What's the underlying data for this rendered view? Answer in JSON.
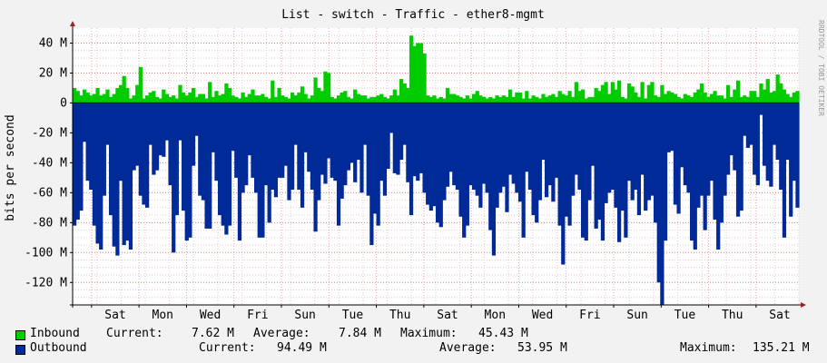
{
  "title": "List - switch - Traffic - ether8-mgmt",
  "watermark": "RRDTOOL / TOBI OETIKER",
  "chart_data": {
    "type": "area",
    "ylabel": "bits per second",
    "ylim": [
      -135,
      50
    ],
    "y_ticks": [
      {
        "value": 40,
        "label": "40 M"
      },
      {
        "value": 20,
        "label": "20 M"
      },
      {
        "value": 0,
        "label": "0"
      },
      {
        "value": -20,
        "label": "-20 M"
      },
      {
        "value": -40,
        "label": "-40 M"
      },
      {
        "value": -60,
        "label": "-60 M"
      },
      {
        "value": -80,
        "label": "-80 M"
      },
      {
        "value": -100,
        "label": "-100 M"
      },
      {
        "value": -120,
        "label": "-120 M"
      }
    ],
    "x_ticks": [
      "Sat",
      "Mon",
      "Wed",
      "Fri",
      "Sun",
      "Tue",
      "Thu",
      "Sat",
      "Mon",
      "Wed",
      "Fri",
      "Sun",
      "Tue",
      "Thu",
      "Sat"
    ],
    "grid": true,
    "colors": {
      "inbound": "#00cc00",
      "outbound": "#002a97",
      "grid_major": "#e08080",
      "grid_minor": "#e6c8c8",
      "background": "#ffffff",
      "page": "#f2f2f2"
    },
    "series": [
      {
        "name": "Inbound",
        "unit": "M",
        "values": [
          10,
          8,
          5,
          9,
          7,
          5,
          6,
          10,
          5,
          6,
          9,
          4,
          6,
          10,
          12,
          18,
          10,
          3,
          5,
          12,
          24,
          3,
          5,
          7,
          8,
          4,
          3,
          9,
          6,
          4,
          5,
          3,
          12,
          7,
          5,
          7,
          10,
          4,
          6,
          6,
          3,
          14,
          4,
          8,
          5,
          6,
          13,
          10,
          5,
          4,
          3,
          7,
          4,
          6,
          9,
          5,
          5,
          6,
          4,
          3,
          15,
          4,
          10,
          5,
          4,
          3,
          7,
          5,
          7,
          11,
          6,
          3,
          5,
          17,
          10,
          8,
          21,
          20,
          4,
          3,
          5,
          7,
          8,
          4,
          3,
          9,
          6,
          5,
          5,
          3,
          4,
          4,
          5,
          6,
          4,
          3,
          5,
          9,
          5,
          16,
          13,
          10,
          45,
          38,
          40,
          40,
          33,
          5,
          4,
          5,
          3,
          4,
          3,
          10,
          6,
          6,
          5,
          4,
          3,
          5,
          3,
          6,
          8,
          5,
          4,
          3,
          4,
          3,
          5,
          4,
          5,
          4,
          9,
          4,
          7,
          7,
          3,
          8,
          3,
          5,
          4,
          3,
          6,
          4,
          5,
          6,
          4,
          8,
          6,
          5,
          8,
          4,
          14,
          8,
          9,
          3,
          4,
          4,
          10,
          8,
          12,
          14,
          6,
          14,
          9,
          15,
          4,
          3,
          13,
          11,
          7,
          4,
          14,
          3,
          12,
          14,
          5,
          4,
          12,
          6,
          8,
          7,
          6,
          4,
          3,
          6,
          5,
          4,
          7,
          9,
          13,
          7,
          4,
          6,
          8,
          5,
          5,
          3,
          12,
          4,
          9,
          15,
          4,
          5,
          4,
          8,
          8,
          4,
          13,
          9,
          16,
          7,
          8,
          19,
          13,
          9,
          6,
          4,
          7,
          8
        ]
      },
      {
        "name": "Outbound",
        "unit": "M",
        "values": [
          -82,
          -78,
          -72,
          -26,
          -52,
          -58,
          -82,
          -94,
          -98,
          -62,
          -28,
          -75,
          -96,
          -102,
          -52,
          -95,
          -92,
          -98,
          -45,
          -42,
          -62,
          -68,
          -70,
          -28,
          -48,
          -45,
          -35,
          -36,
          -25,
          -55,
          -100,
          -75,
          -25,
          -72,
          -92,
          -90,
          -42,
          -22,
          -62,
          -65,
          -84,
          -84,
          -33,
          -52,
          -75,
          -82,
          -88,
          -82,
          -32,
          -50,
          -92,
          -60,
          -55,
          -35,
          -50,
          -60,
          -90,
          -90,
          -55,
          -80,
          -58,
          -63,
          -50,
          -50,
          -42,
          -65,
          -58,
          -28,
          -58,
          -70,
          -33,
          -46,
          -58,
          -86,
          -65,
          -48,
          -54,
          -37,
          -50,
          -52,
          -82,
          -64,
          -55,
          -45,
          -40,
          -53,
          -38,
          -60,
          -28,
          -62,
          -95,
          -74,
          -82,
          -52,
          -62,
          -44,
          -20,
          -47,
          -48,
          -38,
          -28,
          -53,
          -75,
          -49,
          -52,
          -47,
          -60,
          -68,
          -72,
          -69,
          -80,
          -83,
          -65,
          -56,
          -46,
          -55,
          -58,
          -76,
          -90,
          -82,
          -55,
          -58,
          -62,
          -70,
          -54,
          -60,
          -85,
          -102,
          -70,
          -60,
          -56,
          -73,
          -48,
          -54,
          -60,
          -66,
          -90,
          -46,
          -58,
          -75,
          -80,
          -65,
          -38,
          -63,
          -55,
          -66,
          -50,
          -82,
          -108,
          -76,
          -82,
          -62,
          -48,
          -58,
          -90,
          -92,
          -65,
          -42,
          -84,
          -78,
          -92,
          -67,
          -60,
          -58,
          -70,
          -93,
          -72,
          -90,
          -52,
          -65,
          -58,
          -75,
          -48,
          -72,
          -65,
          -62,
          -80,
          -120,
          -135,
          -92,
          -33,
          -32,
          -68,
          -74,
          -43,
          -55,
          -60,
          -92,
          -98,
          -70,
          -62,
          -85,
          -62,
          -52,
          -78,
          -98,
          -80,
          -62,
          -48,
          -35,
          -45,
          -76,
          -72,
          -22,
          -30,
          -28,
          -48,
          -55,
          -8,
          -42,
          -52,
          -56,
          -28,
          -38,
          -58,
          -90,
          -38,
          -76,
          -52,
          -70,
          -82,
          -42,
          -35,
          -58,
          -70,
          -82,
          -74,
          -38,
          -55,
          -70,
          -82,
          -60,
          -35,
          -42,
          -46,
          -48,
          -58,
          -78,
          -38,
          -82,
          -70,
          -46,
          -36,
          -30,
          -42,
          -94
        ]
      }
    ]
  },
  "legend": [
    {
      "key": "inbound",
      "name": "Inbound",
      "current_label": "Current:",
      "current": "7.62 M",
      "average_label": "Average:",
      "average": "7.84 M",
      "maximum_label": "Maximum:",
      "maximum": "45.43 M"
    },
    {
      "key": "outbound",
      "name": "Outbound",
      "current_label": "Current:",
      "current": "94.49 M",
      "average_label": "Average:",
      "average": "53.95 M",
      "maximum_label": "Maximum:",
      "maximum": "135.21 M"
    }
  ]
}
